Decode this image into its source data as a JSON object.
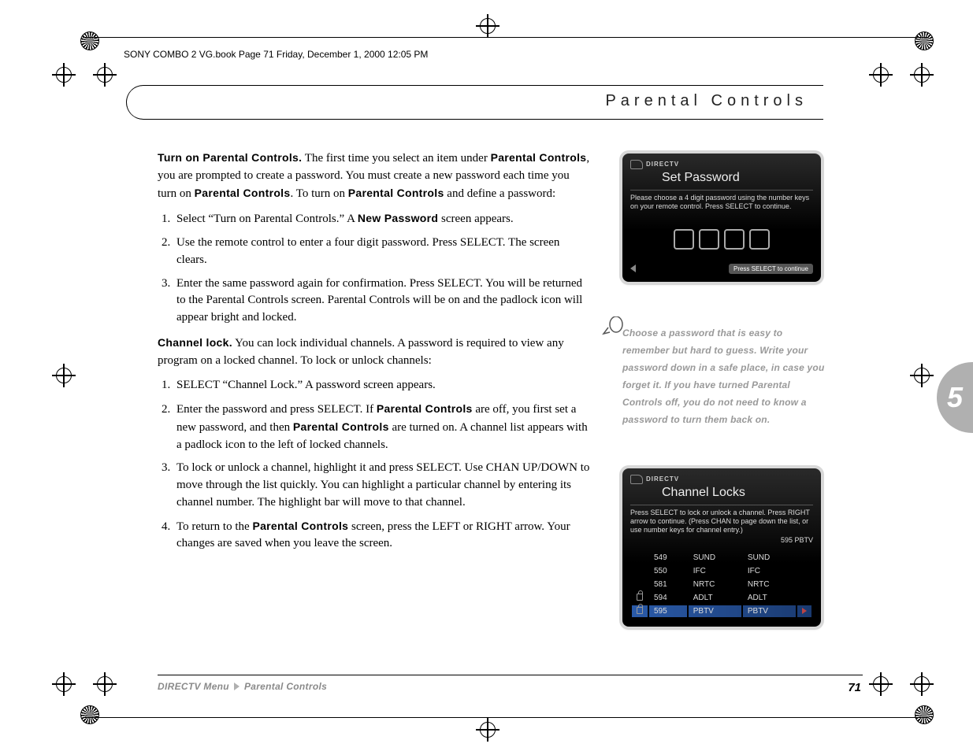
{
  "meta": {
    "running_head": "SONY COMBO 2 VG.book  Page 71  Friday, December 1, 2000  12:05 PM",
    "section_title": "Parental Controls",
    "chapter_number": "5",
    "page_number": "71"
  },
  "body": {
    "p1_lead": "Turn on Parental Controls.",
    "p1_rest_a": " The first time you select an item under ",
    "p1_bold_b": "Parental Controls",
    "p1_rest_b": ", you are prompted to create a password. You must create a new password each time you turn on ",
    "p1_bold_c": "Parental Controls",
    "p1_rest_c": ". To turn on ",
    "p1_bold_d": "Parental Controls",
    "p1_rest_d": " and define a password:",
    "list1": {
      "i1_a": "Select “Turn on Parental Controls.” A ",
      "i1_bold": "New Password",
      "i1_b": " screen appears.",
      "i2": "Use the remote control to enter a four digit password. Press SELECT. The screen clears.",
      "i3": "Enter the same password again for confirmation. Press SELECT. You will be returned to the Parental Controls screen. Parental Controls will be on and the padlock icon will appear bright and locked."
    },
    "p2_lead": "Channel lock.",
    "p2_rest": " You can lock individual channels. A password is required to view any program on a locked channel. To lock or unlock channels:",
    "list2": {
      "i1": "SELECT “Channel Lock.” A password screen appears.",
      "i2_a": "Enter the password and press SELECT. If ",
      "i2_bold_a": "Parental Controls",
      "i2_b": " are off, you first set a new password, and then ",
      "i2_bold_b": "Parental Controls",
      "i2_c": " are turned on. A channel list appears with a padlock icon to the left of locked channels.",
      "i3": "To lock or unlock a channel, highlight it and press SELECT. Use CHAN UP/DOWN to move through the list quickly. You can highlight a particular channel by entering its channel number. The highlight bar will move to that channel.",
      "i4_a": "To return to the ",
      "i4_bold": "Parental Controls",
      "i4_b": " screen, press the LEFT or RIGHT arrow. Your changes are saved when you leave the screen."
    }
  },
  "tip": {
    "text": "Choose a password that is easy to remember but hard to guess. Write your password down in a safe place, in case you forget it. If you have turned Parental Controls off, you do not need to know a password to turn them back on."
  },
  "screen1": {
    "logo": "DIRECTV",
    "title": "Set Password",
    "instr": "Please choose a 4 digit password using the number keys on your remote control. Press SELECT to continue.",
    "footer": "Press SELECT to continue"
  },
  "screen2": {
    "logo": "DIRECTV",
    "title": "Channel Locks",
    "instr": "Press SELECT to lock or unlock a channel. Press RIGHT arrow to continue. (Press CHAN to page down the list, or use number keys for channel entry.)",
    "current": "595 PBTV",
    "rows": [
      {
        "num": "549",
        "c1": "SUND",
        "c2": "SUND",
        "lock": false,
        "hl": false
      },
      {
        "num": "550",
        "c1": "IFC",
        "c2": "IFC",
        "lock": false,
        "hl": false
      },
      {
        "num": "581",
        "c1": "NRTC",
        "c2": "NRTC",
        "lock": false,
        "hl": false
      },
      {
        "num": "594",
        "c1": "ADLT",
        "c2": "ADLT",
        "lock": true,
        "hl": false
      },
      {
        "num": "595",
        "c1": "PBTV",
        "c2": "PBTV",
        "lock": true,
        "hl": true
      }
    ]
  },
  "footer": {
    "crumb1": "DIRECTV Menu",
    "crumb2": "Parental Controls"
  },
  "style": {
    "page_bg": "#ffffff",
    "tip_color": "#999999",
    "tab_bg": "#b0b0b0",
    "hl_row": "#2a5aa8"
  }
}
